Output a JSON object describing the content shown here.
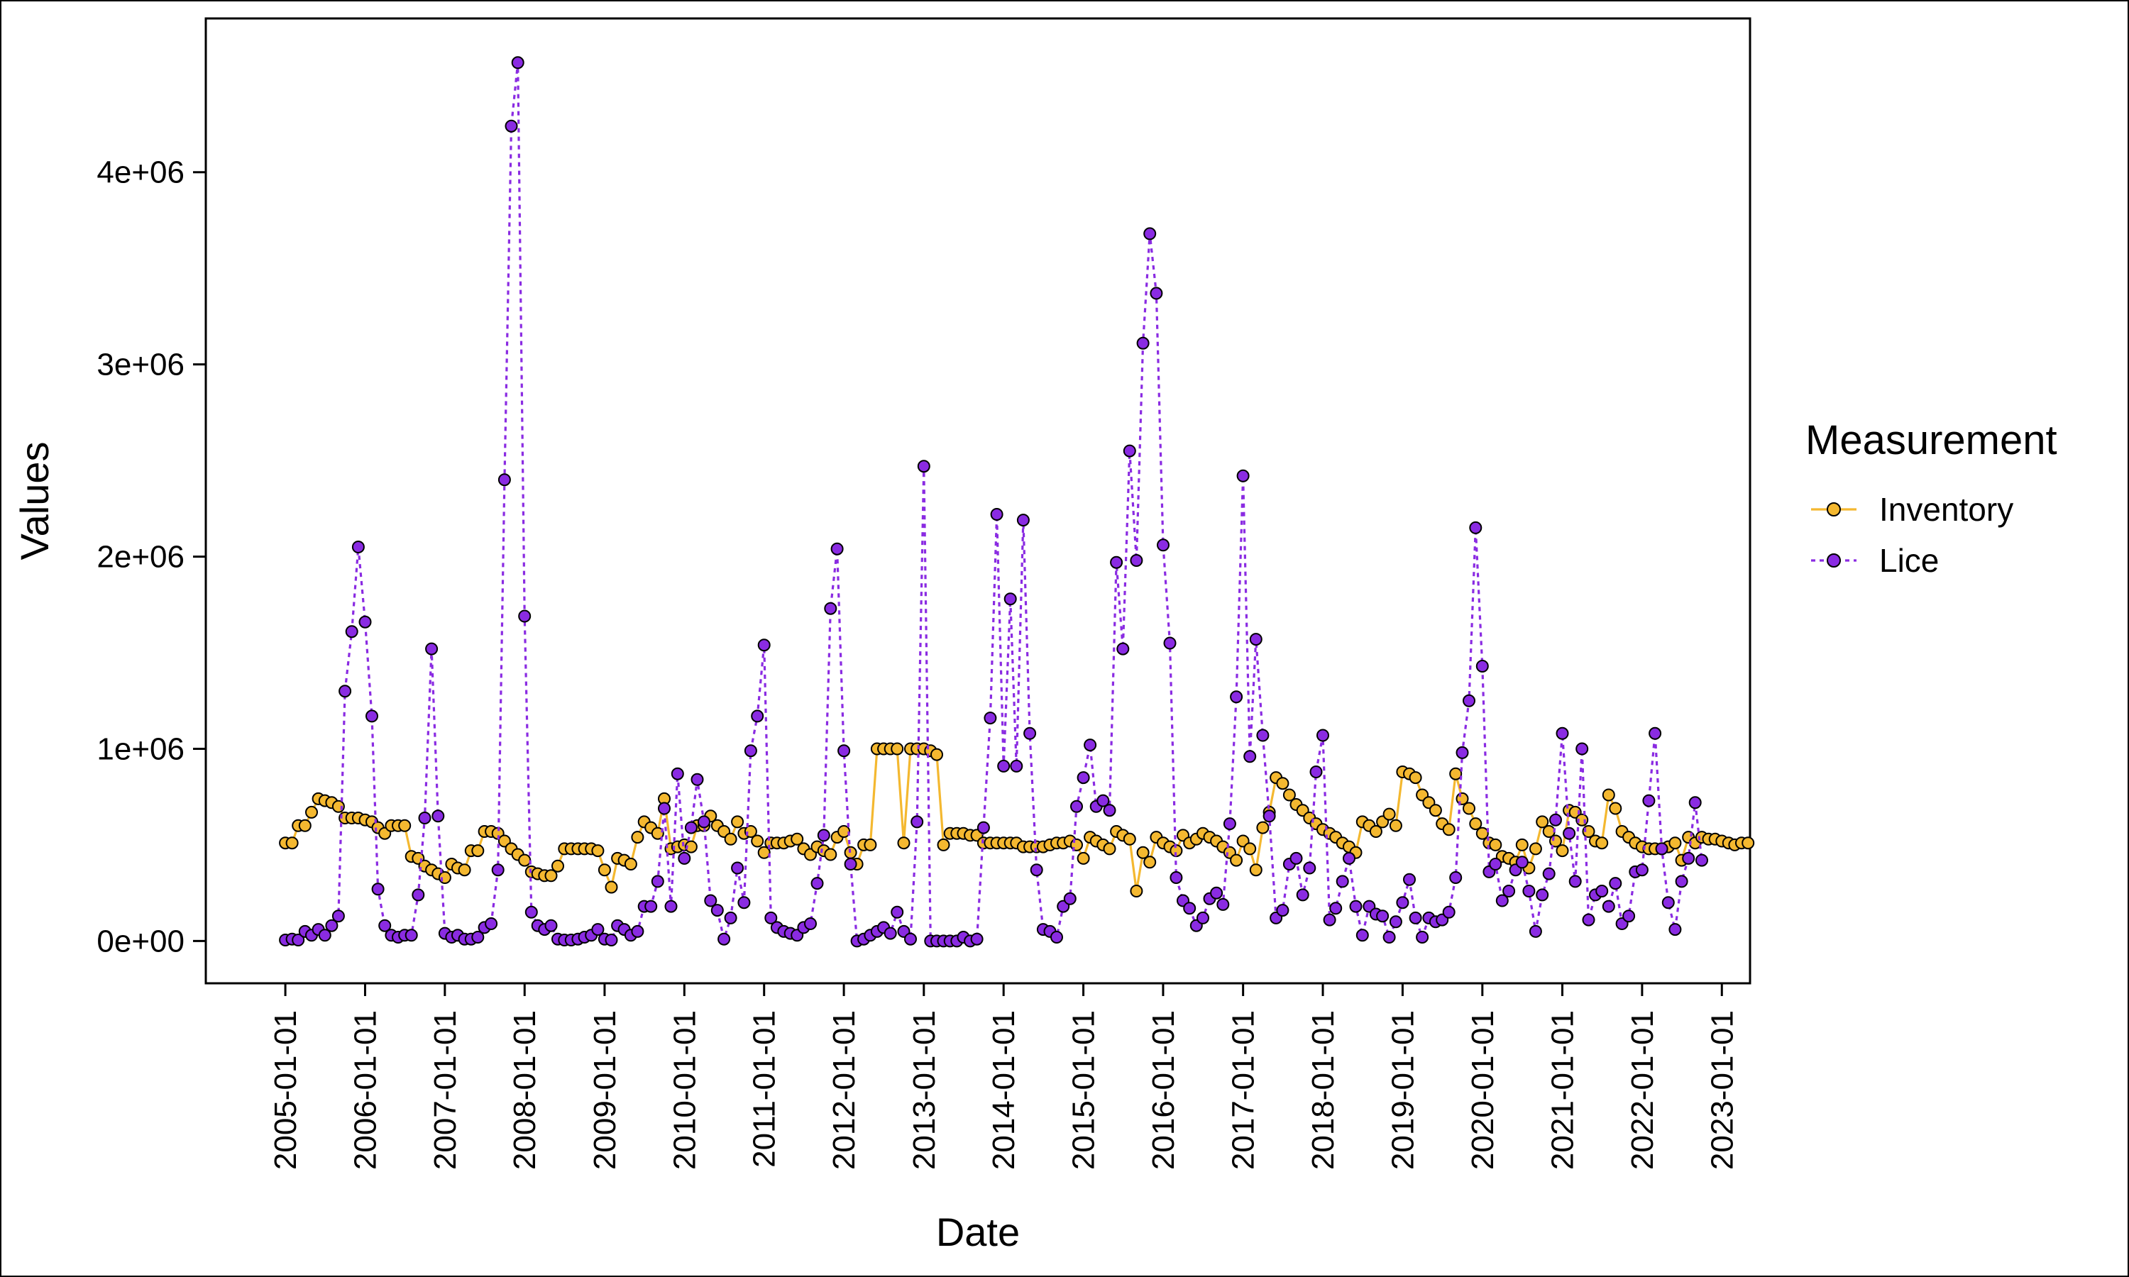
{
  "chart_data": {
    "type": "line",
    "title": "",
    "xlabel": "Date",
    "ylabel": "Values",
    "x_ticks": [
      "2005-01-01",
      "2006-01-01",
      "2007-01-01",
      "2008-01-01",
      "2009-01-01",
      "2010-01-01",
      "2011-01-01",
      "2012-01-01",
      "2013-01-01",
      "2014-01-01",
      "2015-01-01",
      "2016-01-01",
      "2017-01-01",
      "2018-01-01",
      "2019-01-01",
      "2020-01-01",
      "2021-01-01",
      "2022-01-01",
      "2023-01-01"
    ],
    "y_ticks": [
      0,
      1000000,
      2000000,
      3000000,
      4000000
    ],
    "y_tick_labels": [
      "0e+00",
      "1e+06",
      "2e+06",
      "3e+06",
      "4e+06"
    ],
    "xlim": [
      "2004-01-03",
      "2023-05-10"
    ],
    "ylim": [
      -220000,
      4800000
    ],
    "grid": false,
    "legend_title": "Measurement",
    "legend_position": "right",
    "series": [
      {
        "name": "Inventory",
        "color": "#F4B830",
        "line_style": "solid",
        "start": "2005-01-01",
        "step": "month",
        "values": [
          510000,
          510000,
          600000,
          600000,
          670000,
          740000,
          730000,
          720000,
          700000,
          640000,
          640000,
          640000,
          630000,
          620000,
          590000,
          560000,
          600000,
          600000,
          600000,
          440000,
          430000,
          390000,
          370000,
          350000,
          330000,
          400000,
          380000,
          370000,
          470000,
          470000,
          570000,
          570000,
          560000,
          520000,
          480000,
          450000,
          420000,
          360000,
          350000,
          340000,
          340000,
          390000,
          480000,
          480000,
          480000,
          480000,
          480000,
          470000,
          370000,
          280000,
          430000,
          420000,
          400000,
          540000,
          620000,
          590000,
          560000,
          740000,
          480000,
          490000,
          500000,
          490000,
          600000,
          600000,
          650000,
          600000,
          570000,
          530000,
          620000,
          560000,
          570000,
          520000,
          460000,
          510000,
          510000,
          510000,
          520000,
          530000,
          480000,
          450000,
          490000,
          470000,
          450000,
          540000,
          570000,
          460000,
          400000,
          500000,
          500000,
          1000000,
          1000000,
          1000000,
          1000000,
          510000,
          1000000,
          1000000,
          1000000,
          990000,
          970000,
          500000,
          560000,
          560000,
          560000,
          550000,
          550000,
          510000,
          510000,
          510000,
          510000,
          510000,
          510000,
          490000,
          490000,
          490000,
          490000,
          500000,
          510000,
          510000,
          520000,
          500000,
          430000,
          540000,
          520000,
          500000,
          480000,
          570000,
          550000,
          530000,
          260000,
          460000,
          410000,
          540000,
          510000,
          490000,
          470000,
          550000,
          510000,
          530000,
          560000,
          540000,
          520000,
          490000,
          460000,
          420000,
          520000,
          480000,
          370000,
          590000,
          670000,
          850000,
          820000,
          760000,
          710000,
          680000,
          640000,
          610000,
          580000,
          560000,
          540000,
          510000,
          490000,
          460000,
          620000,
          600000,
          570000,
          620000,
          660000,
          600000,
          880000,
          870000,
          850000,
          760000,
          720000,
          680000,
          610000,
          580000,
          870000,
          740000,
          690000,
          610000,
          560000,
          510000,
          500000,
          440000,
          430000,
          410000,
          500000,
          380000,
          480000,
          620000,
          570000,
          520000,
          470000,
          680000,
          670000,
          630000,
          570000,
          520000,
          510000,
          760000,
          690000,
          570000,
          540000,
          510000,
          490000,
          480000,
          480000,
          480000,
          490000,
          510000,
          420000,
          540000,
          510000,
          540000,
          530000,
          530000,
          520000,
          510000,
          500000,
          510000,
          510000
        ]
      },
      {
        "name": "Lice",
        "color": "#8A2BE2",
        "line_style": "dotted",
        "start": "2005-01-01",
        "step": "month",
        "values": [
          5000,
          10000,
          5000,
          50000,
          30000,
          60000,
          30000,
          80000,
          130000,
          1300000,
          1610000,
          2050000,
          1660000,
          1170000,
          270000,
          80000,
          30000,
          20000,
          30000,
          30000,
          240000,
          640000,
          1520000,
          650000,
          40000,
          20000,
          30000,
          10000,
          10000,
          20000,
          70000,
          90000,
          370000,
          2400000,
          4240000,
          4570000,
          1690000,
          150000,
          80000,
          60000,
          80000,
          10000,
          5000,
          5000,
          10000,
          20000,
          30000,
          60000,
          10000,
          5000,
          80000,
          60000,
          30000,
          50000,
          180000,
          180000,
          310000,
          690000,
          180000,
          870000,
          430000,
          590000,
          840000,
          620000,
          210000,
          160000,
          10000,
          120000,
          380000,
          200000,
          990000,
          1170000,
          1540000,
          120000,
          70000,
          50000,
          40000,
          30000,
          70000,
          90000,
          300000,
          550000,
          1730000,
          2040000,
          990000,
          400000,
          0,
          10000,
          30000,
          50000,
          70000,
          40000,
          150000,
          50000,
          10000,
          620000,
          2470000,
          0,
          0,
          0,
          0,
          0,
          20000,
          0,
          10000,
          590000,
          1160000,
          2220000,
          910000,
          1780000,
          910000,
          2190000,
          1080000,
          370000,
          60000,
          50000,
          20000,
          180000,
          220000,
          700000,
          850000,
          1020000,
          700000,
          730000,
          680000,
          1970000,
          1520000,
          2550000,
          1980000,
          3110000,
          3680000,
          3370000,
          2060000,
          1550000,
          330000,
          210000,
          170000,
          80000,
          120000,
          220000,
          250000,
          190000,
          610000,
          1270000,
          2420000,
          960000,
          1570000,
          1070000,
          650000,
          120000,
          160000,
          400000,
          430000,
          240000,
          380000,
          880000,
          1070000,
          110000,
          170000,
          310000,
          430000,
          180000,
          30000,
          180000,
          140000,
          130000,
          20000,
          100000,
          200000,
          320000,
          120000,
          20000,
          120000,
          100000,
          110000,
          150000,
          330000,
          980000,
          1250000,
          2150000,
          1430000,
          360000,
          400000,
          210000,
          260000,
          370000,
          410000,
          260000,
          50000,
          240000,
          350000,
          630000,
          1080000,
          560000,
          310000,
          1000000,
          110000,
          240000,
          260000,
          180000,
          300000,
          90000,
          130000,
          360000,
          370000,
          730000,
          1080000,
          480000,
          200000,
          60000,
          310000,
          430000,
          720000,
          420000
        ]
      }
    ]
  }
}
